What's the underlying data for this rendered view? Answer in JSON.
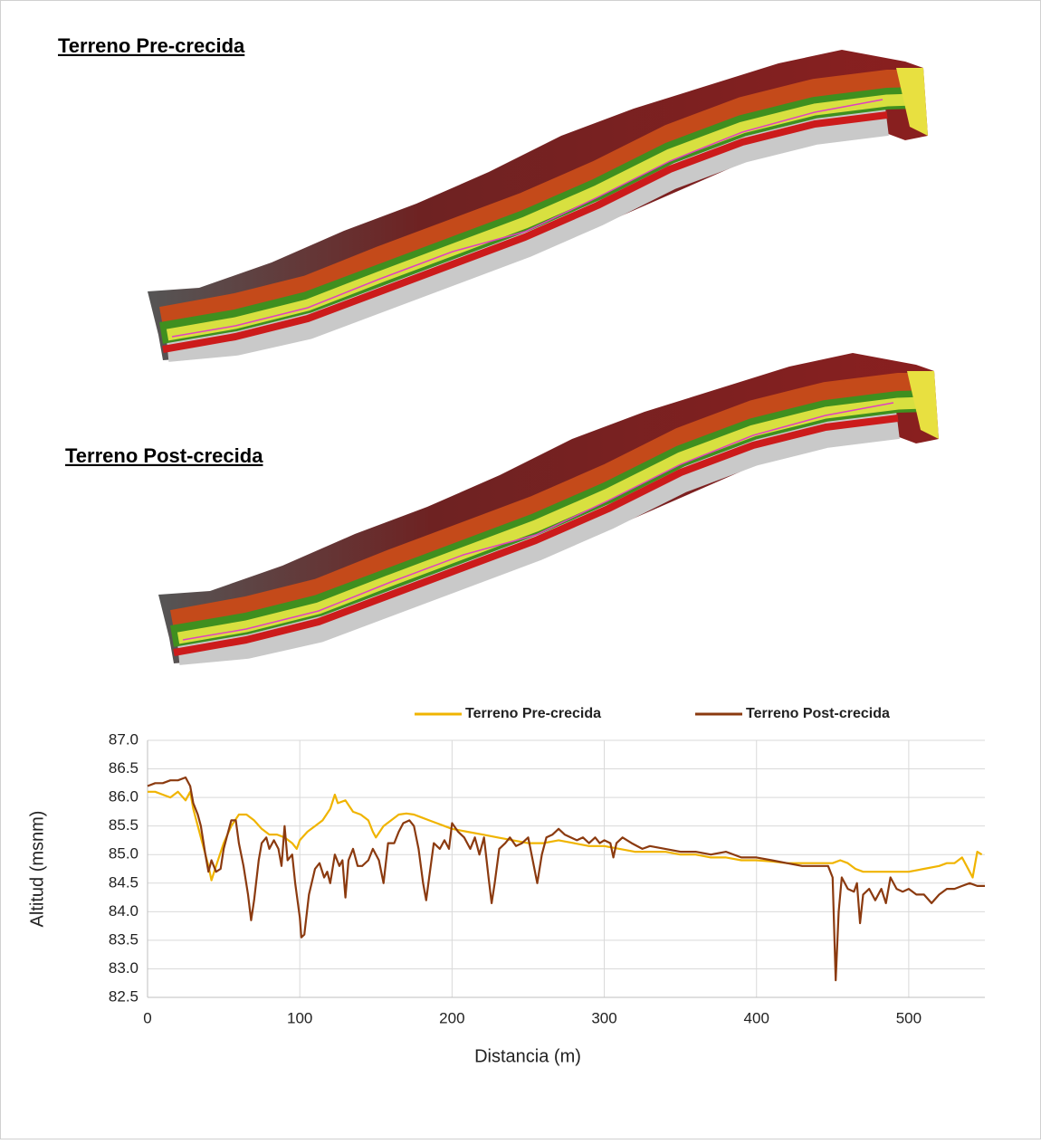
{
  "images": [
    {
      "label": "Terreno Pre-crecida"
    },
    {
      "label": "Terreno Post-crecida"
    }
  ],
  "chart_data": {
    "type": "line",
    "xlabel": "Distancia (m)",
    "ylabel": "Altitud (msnm)",
    "xlim": [
      0,
      550
    ],
    "xticks": [
      0,
      100,
      200,
      300,
      400,
      500
    ],
    "ylim": [
      82.5,
      87.0
    ],
    "yticks": [
      82.5,
      {
        "value": 83,
        "label": "83.0"
      },
      83.5,
      {
        "value": 84,
        "label": "84.0"
      },
      84.5,
      {
        "value": 85,
        "label": "85.0"
      },
      85.5,
      {
        "value": 86,
        "label": "86.0"
      },
      86.5,
      {
        "value": 87,
        "label": "87.0"
      }
    ],
    "grid": true,
    "legend": "top",
    "series": [
      {
        "name": "Terreno Pre-crecida",
        "color": "#f0b400",
        "x": [
          0,
          5,
          10,
          15,
          20,
          25,
          28,
          30,
          35,
          40,
          42,
          45,
          50,
          55,
          60,
          65,
          70,
          75,
          80,
          85,
          90,
          95,
          98,
          100,
          105,
          110,
          115,
          120,
          123,
          125,
          130,
          135,
          140,
          145,
          148,
          150,
          155,
          160,
          165,
          170,
          175,
          180,
          185,
          190,
          195,
          200,
          210,
          220,
          230,
          240,
          250,
          260,
          270,
          280,
          290,
          300,
          310,
          320,
          330,
          340,
          350,
          360,
          370,
          380,
          390,
          400,
          410,
          420,
          430,
          440,
          450,
          455,
          460,
          465,
          470,
          480,
          490,
          500,
          510,
          520,
          525,
          530,
          535,
          540,
          542,
          545,
          548
        ],
        "values": [
          86.1,
          86.1,
          86.05,
          86.0,
          86.1,
          85.95,
          86.1,
          85.8,
          85.3,
          84.8,
          84.55,
          84.8,
          85.2,
          85.5,
          85.7,
          85.7,
          85.6,
          85.45,
          85.35,
          85.35,
          85.3,
          85.2,
          85.1,
          85.25,
          85.4,
          85.5,
          85.6,
          85.8,
          86.05,
          85.9,
          85.95,
          85.75,
          85.7,
          85.6,
          85.4,
          85.3,
          85.5,
          85.6,
          85.7,
          85.72,
          85.7,
          85.65,
          85.6,
          85.55,
          85.5,
          85.45,
          85.4,
          85.35,
          85.3,
          85.25,
          85.2,
          85.2,
          85.25,
          85.2,
          85.15,
          85.15,
          85.1,
          85.05,
          85.05,
          85.05,
          85.0,
          85.0,
          84.95,
          84.95,
          84.9,
          84.9,
          84.88,
          84.85,
          84.85,
          84.85,
          84.85,
          84.9,
          84.85,
          84.75,
          84.7,
          84.7,
          84.7,
          84.7,
          84.75,
          84.8,
          84.85,
          84.85,
          84.95,
          84.7,
          84.6,
          85.05,
          85.0
        ]
      },
      {
        "name": "Terreno Post-crecida",
        "color": "#8b3a0f",
        "x": [
          0,
          5,
          10,
          15,
          20,
          25,
          28,
          30,
          33,
          35,
          38,
          40,
          42,
          45,
          48,
          50,
          53,
          55,
          58,
          60,
          63,
          66,
          68,
          70,
          73,
          75,
          78,
          80,
          83,
          86,
          88,
          90,
          92,
          95,
          97,
          100,
          101,
          103,
          106,
          110,
          113,
          116,
          118,
          120,
          123,
          126,
          128,
          130,
          132,
          135,
          138,
          141,
          145,
          148,
          152,
          155,
          158,
          162,
          165,
          168,
          172,
          175,
          178,
          181,
          183,
          185,
          188,
          192,
          195,
          198,
          200,
          204,
          208,
          212,
          215,
          218,
          221,
          224,
          226,
          228,
          231,
          235,
          238,
          242,
          246,
          250,
          253,
          256,
          259,
          262,
          266,
          270,
          274,
          278,
          282,
          286,
          290,
          294,
          297,
          300,
          304,
          306,
          308,
          312,
          318,
          325,
          330,
          340,
          350,
          360,
          370,
          380,
          390,
          400,
          410,
          420,
          430,
          440,
          447,
          450,
          452,
          454,
          456,
          460,
          464,
          466,
          468,
          470,
          474,
          478,
          482,
          485,
          488,
          492,
          496,
          500,
          505,
          510,
          515,
          520,
          525,
          530,
          535,
          540,
          545,
          550
        ],
        "values": [
          86.2,
          86.25,
          86.25,
          86.3,
          86.3,
          86.35,
          86.2,
          85.9,
          85.7,
          85.5,
          85.0,
          84.7,
          84.9,
          84.7,
          84.75,
          85.1,
          85.4,
          85.6,
          85.6,
          85.2,
          84.8,
          84.3,
          83.85,
          84.2,
          84.9,
          85.2,
          85.3,
          85.1,
          85.25,
          85.1,
          84.8,
          85.5,
          84.9,
          85.0,
          84.5,
          83.9,
          83.55,
          83.6,
          84.3,
          84.75,
          84.85,
          84.6,
          84.7,
          84.5,
          85.0,
          84.8,
          84.9,
          84.25,
          84.9,
          85.1,
          84.8,
          84.8,
          84.9,
          85.1,
          84.9,
          84.5,
          85.2,
          85.2,
          85.4,
          85.55,
          85.6,
          85.5,
          85.1,
          84.5,
          84.2,
          84.6,
          85.2,
          85.1,
          85.25,
          85.1,
          85.55,
          85.4,
          85.3,
          85.1,
          85.3,
          85.0,
          85.3,
          84.6,
          84.15,
          84.5,
          85.1,
          85.2,
          85.3,
          85.15,
          85.2,
          85.3,
          84.9,
          84.5,
          85.0,
          85.3,
          85.35,
          85.45,
          85.35,
          85.3,
          85.25,
          85.3,
          85.2,
          85.3,
          85.2,
          85.25,
          85.2,
          84.95,
          85.2,
          85.3,
          85.2,
          85.1,
          85.15,
          85.1,
          85.05,
          85.05,
          85.0,
          85.05,
          84.95,
          84.95,
          84.9,
          84.85,
          84.8,
          84.8,
          84.8,
          84.6,
          82.8,
          84.0,
          84.6,
          84.4,
          84.35,
          84.5,
          83.8,
          84.3,
          84.4,
          84.2,
          84.4,
          84.15,
          84.6,
          84.4,
          84.35,
          84.4,
          84.3,
          84.3,
          84.15,
          84.3,
          84.4,
          84.4,
          84.45,
          84.5,
          84.45,
          84.45
        ]
      }
    ]
  }
}
